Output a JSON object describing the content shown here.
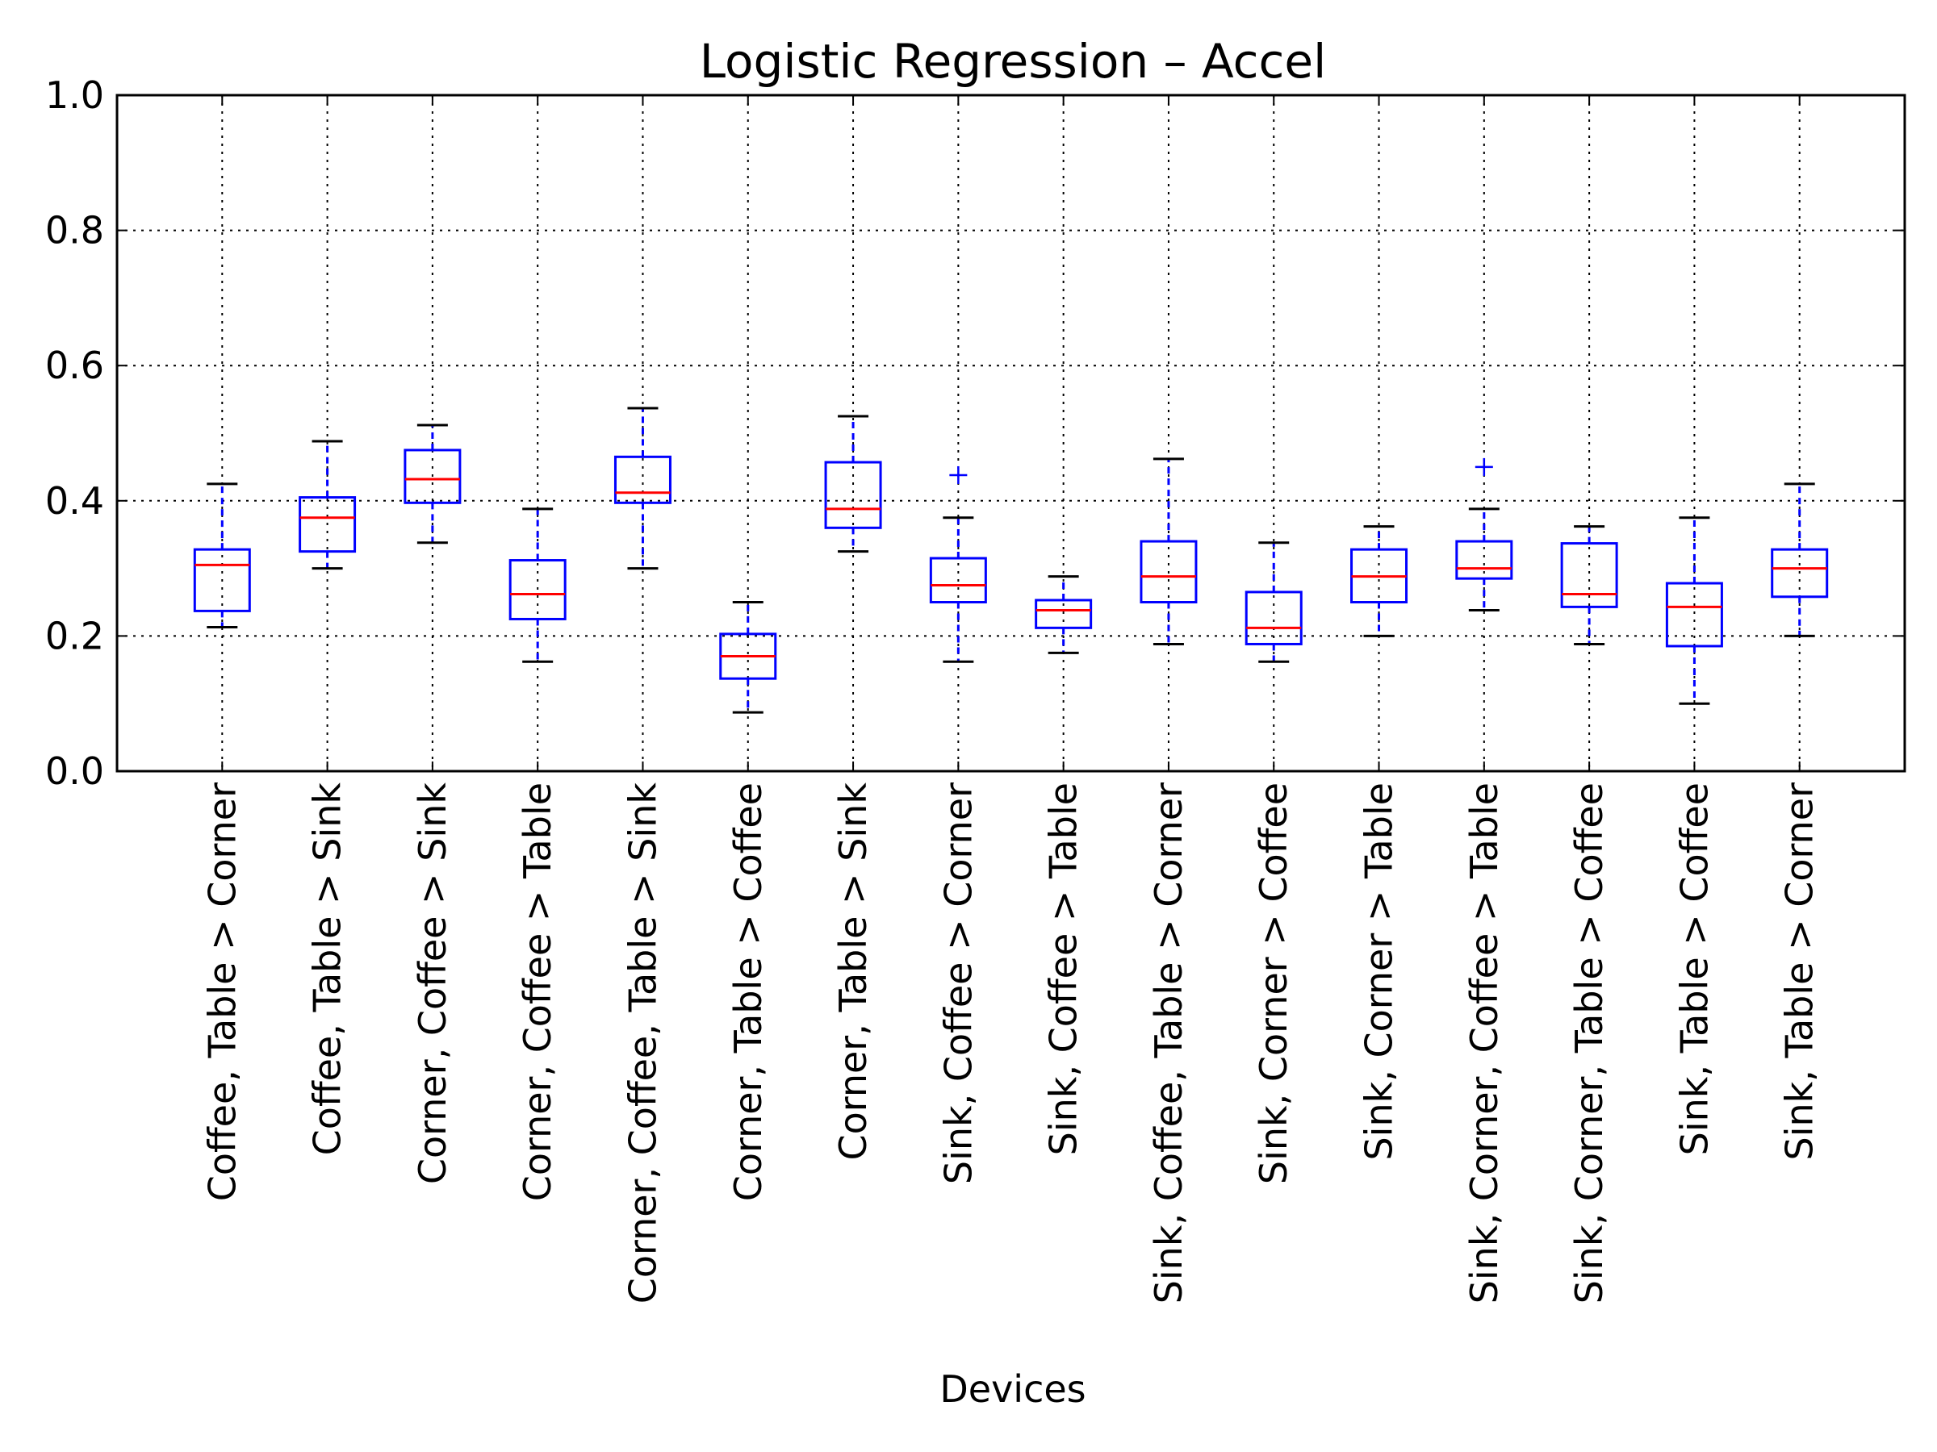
{
  "chart_data": {
    "type": "box",
    "title": "Logistic Regression – Accel",
    "xlabel": "Devices",
    "ylabel": "",
    "ylim": [
      0.0,
      1.0
    ],
    "yticks": [
      "0.0",
      "0.2",
      "0.4",
      "0.6",
      "0.8",
      "1.0"
    ],
    "grid": true,
    "legend": "none",
    "colors": {
      "box": "#0000ff",
      "median": "#ff0000",
      "whisker": "#0000ff",
      "cap": "#000000",
      "grid": "#000000"
    },
    "categories": [
      "Coffee, Table > Corner",
      "Coffee, Table > Sink",
      "Corner, Coffee > Sink",
      "Corner, Coffee > Table",
      "Corner, Coffee, Table > Sink",
      "Corner, Table > Coffee",
      "Corner, Table > Sink",
      "Sink, Coffee > Corner",
      "Sink, Coffee > Table",
      "Sink, Coffee, Table > Corner",
      "Sink, Corner > Coffee",
      "Sink, Corner > Table",
      "Sink, Corner, Coffee > Table",
      "Sink, Corner, Table > Coffee",
      "Sink, Table > Coffee",
      "Sink, Table > Corner"
    ],
    "boxes": [
      {
        "whislo": 0.213,
        "q1": 0.237,
        "med": 0.305,
        "q3": 0.328,
        "whishi": 0.425,
        "fliers": []
      },
      {
        "whislo": 0.3,
        "q1": 0.325,
        "med": 0.375,
        "q3": 0.405,
        "whishi": 0.488,
        "fliers": []
      },
      {
        "whislo": 0.338,
        "q1": 0.397,
        "med": 0.432,
        "q3": 0.475,
        "whishi": 0.512,
        "fliers": []
      },
      {
        "whislo": 0.162,
        "q1": 0.225,
        "med": 0.262,
        "q3": 0.312,
        "whishi": 0.388,
        "fliers": []
      },
      {
        "whislo": 0.3,
        "q1": 0.397,
        "med": 0.412,
        "q3": 0.465,
        "whishi": 0.537,
        "fliers": []
      },
      {
        "whislo": 0.087,
        "q1": 0.137,
        "med": 0.17,
        "q3": 0.203,
        "whishi": 0.25,
        "fliers": []
      },
      {
        "whislo": 0.325,
        "q1": 0.36,
        "med": 0.388,
        "q3": 0.457,
        "whishi": 0.525,
        "fliers": []
      },
      {
        "whislo": 0.162,
        "q1": 0.25,
        "med": 0.275,
        "q3": 0.315,
        "whishi": 0.375,
        "fliers": [
          0.438
        ]
      },
      {
        "whislo": 0.175,
        "q1": 0.212,
        "med": 0.238,
        "q3": 0.253,
        "whishi": 0.288,
        "fliers": []
      },
      {
        "whislo": 0.188,
        "q1": 0.25,
        "med": 0.288,
        "q3": 0.34,
        "whishi": 0.462,
        "fliers": []
      },
      {
        "whislo": 0.162,
        "q1": 0.188,
        "med": 0.212,
        "q3": 0.265,
        "whishi": 0.338,
        "fliers": []
      },
      {
        "whislo": 0.2,
        "q1": 0.25,
        "med": 0.288,
        "q3": 0.328,
        "whishi": 0.362,
        "fliers": []
      },
      {
        "whislo": 0.238,
        "q1": 0.285,
        "med": 0.3,
        "q3": 0.34,
        "whishi": 0.388,
        "fliers": [
          0.45
        ]
      },
      {
        "whislo": 0.188,
        "q1": 0.243,
        "med": 0.262,
        "q3": 0.337,
        "whishi": 0.362,
        "fliers": []
      },
      {
        "whislo": 0.1,
        "q1": 0.185,
        "med": 0.243,
        "q3": 0.278,
        "whishi": 0.375,
        "fliers": []
      },
      {
        "whislo": 0.2,
        "q1": 0.258,
        "med": 0.3,
        "q3": 0.328,
        "whishi": 0.425,
        "fliers": []
      }
    ]
  }
}
